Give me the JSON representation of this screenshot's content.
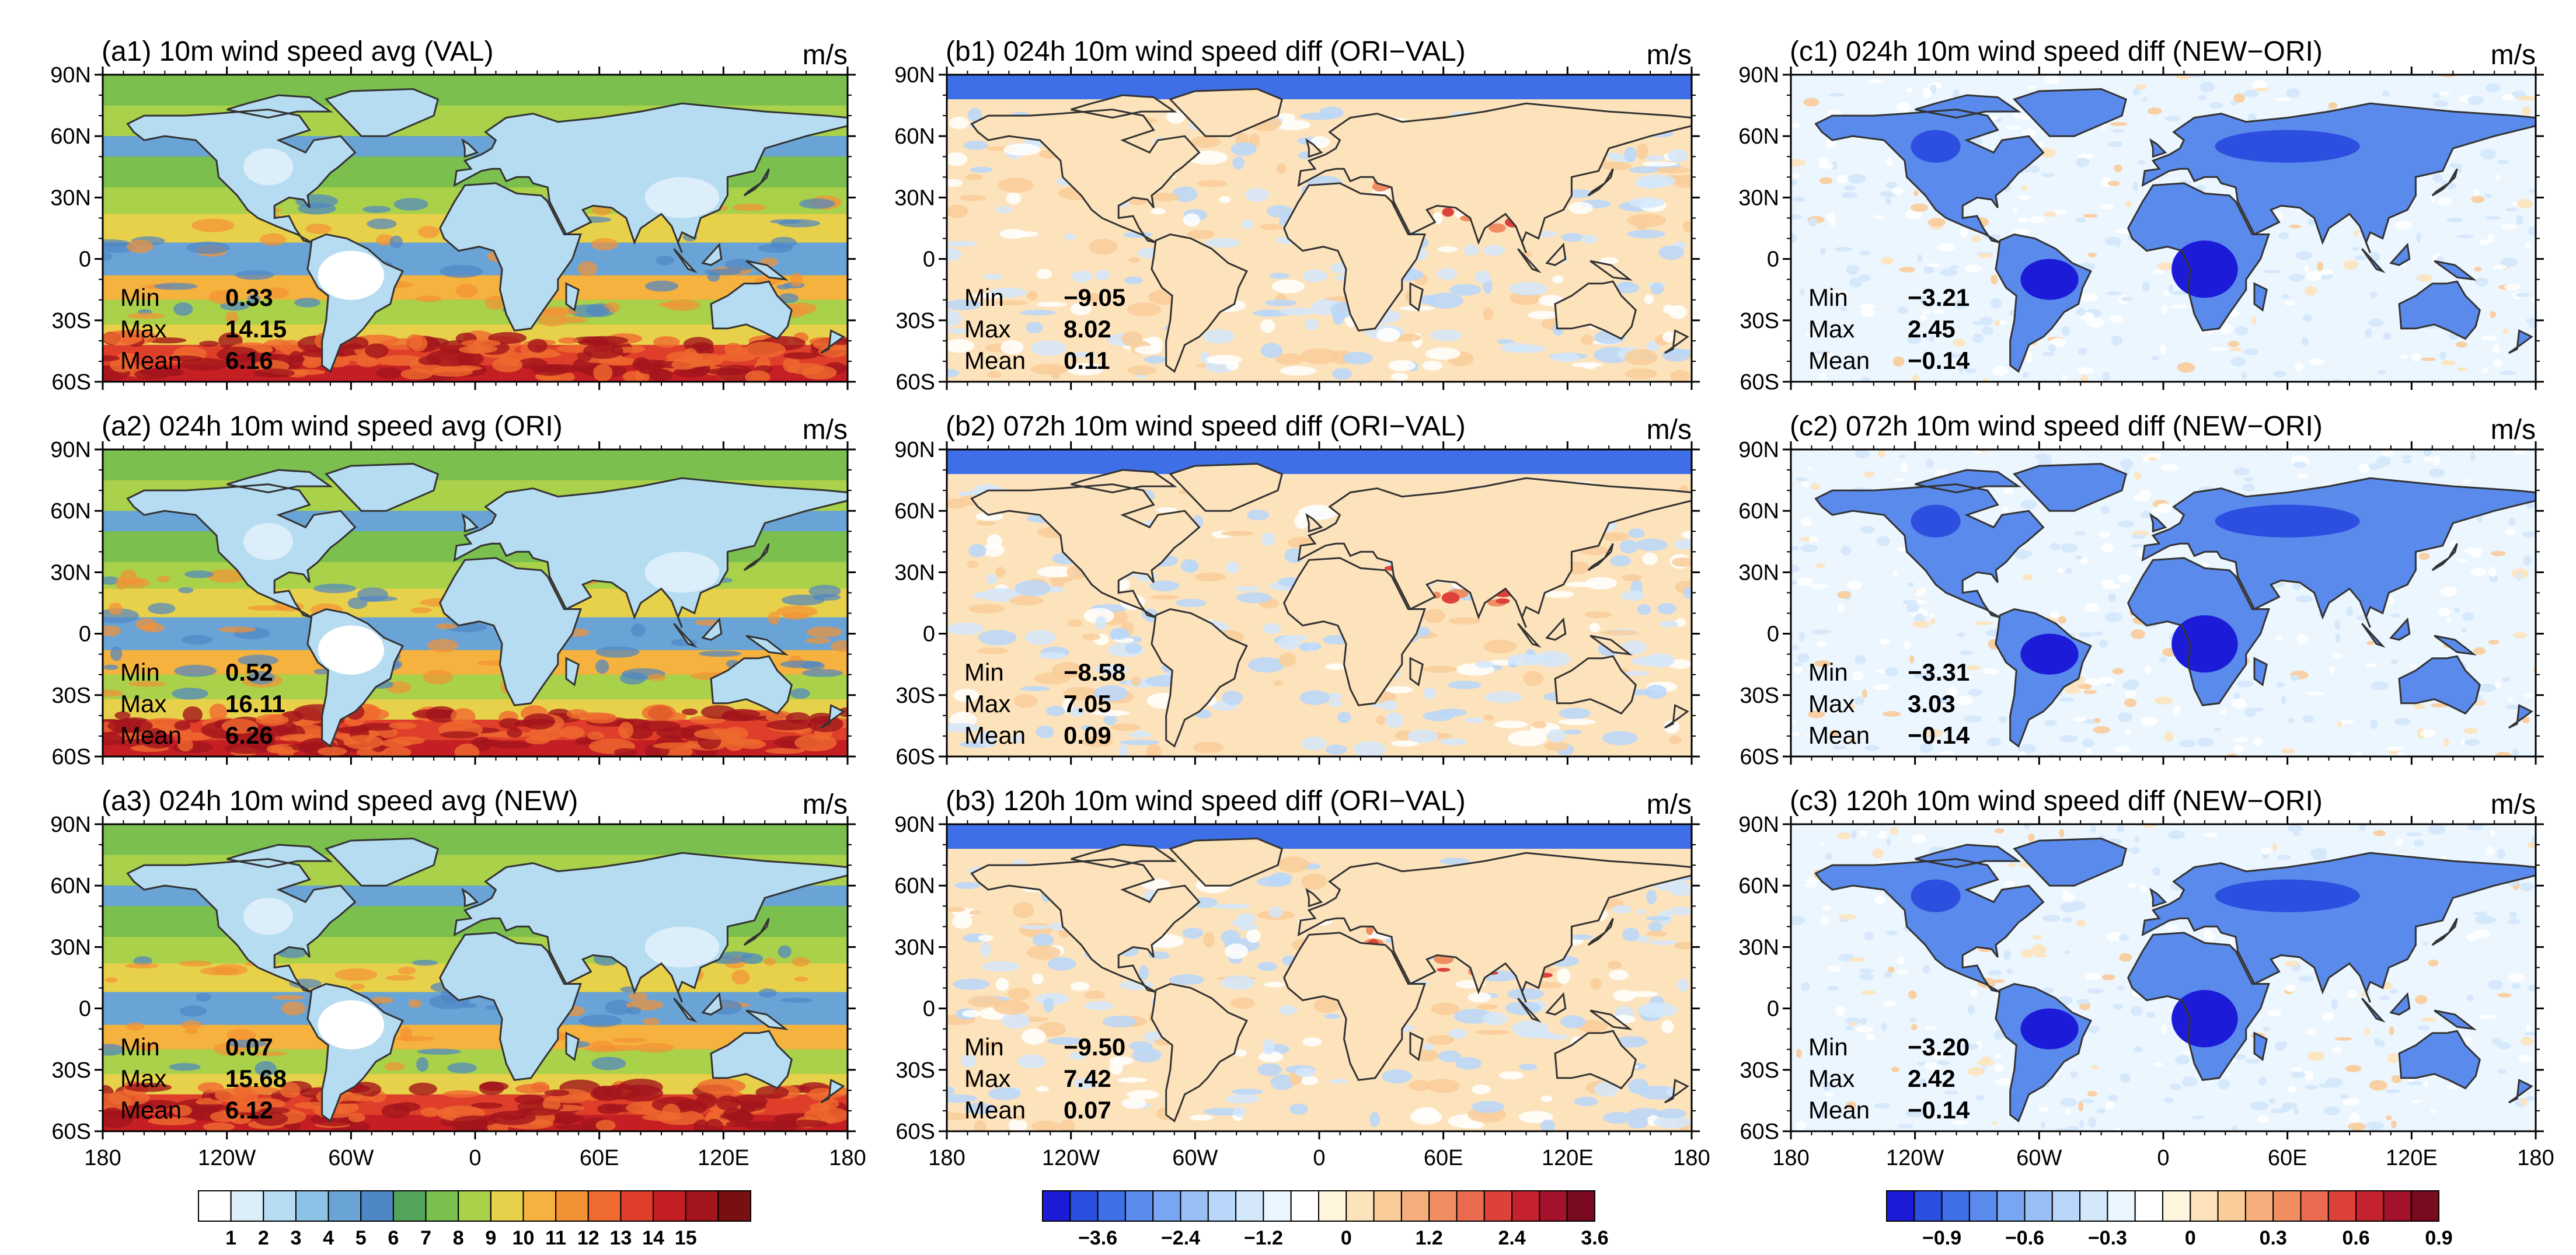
{
  "figure": {
    "lat_ticks": [
      "90N",
      "60N",
      "30N",
      "0",
      "30S",
      "60S"
    ],
    "lon_ticks": [
      "180",
      "120W",
      "60W",
      "0",
      "60E",
      "120E",
      "180"
    ],
    "unit": "m/s",
    "stat_labels": {
      "min": "Min",
      "max": "Max",
      "mean": "Mean"
    }
  },
  "colorbars": [
    {
      "name": "speed-colorbar",
      "colors": [
        "#ffffff",
        "#dceefa",
        "#b6dcf2",
        "#8cc2e6",
        "#6aa4d6",
        "#4f86c4",
        "#52a55a",
        "#7bbf4e",
        "#a9d14a",
        "#e8d14a",
        "#f5b23e",
        "#f39135",
        "#ef6a2e",
        "#df3f2a",
        "#c51f24",
        "#a3141c",
        "#7a0f12"
      ],
      "labels": [
        "1",
        "2",
        "3",
        "4",
        "5",
        "6",
        "7",
        "8",
        "9",
        "10",
        "11",
        "12",
        "13",
        "14",
        "15"
      ]
    },
    {
      "name": "diff-orival-colorbar",
      "colors": [
        "#1c1cd8",
        "#2d4fe0",
        "#3f6fe6",
        "#5a8aec",
        "#78a6f2",
        "#98c0f6",
        "#b8d7fa",
        "#d4e8fc",
        "#ecf6fe",
        "#ffffff",
        "#fff4dc",
        "#fde3bc",
        "#f9cc9a",
        "#f5ae7c",
        "#f08e62",
        "#e96a4e",
        "#dc4239",
        "#c52230",
        "#a3122a",
        "#7a0a20"
      ],
      "labels": [
        "−3.6",
        "−2.4",
        "−1.2",
        "0",
        "1.2",
        "2.4",
        "3.6"
      ]
    },
    {
      "name": "diff-newori-colorbar",
      "colors": [
        "#1c1cd8",
        "#2d4fe0",
        "#3f6fe6",
        "#5a8aec",
        "#78a6f2",
        "#98c0f6",
        "#b8d7fa",
        "#d4e8fc",
        "#ecf6fe",
        "#ffffff",
        "#fff4dc",
        "#fde3bc",
        "#f9cc9a",
        "#f5ae7c",
        "#f08e62",
        "#e96a4e",
        "#dc4239",
        "#c52230",
        "#a3122a",
        "#7a0a20"
      ],
      "labels": [
        "−0.9",
        "−0.6",
        "−0.3",
        "0",
        "0.3",
        "0.6",
        "0.9"
      ]
    }
  ],
  "chart_data": [
    {
      "type": "heatmap",
      "panel": "a1",
      "title": "(a1) 10m wind speed avg (VAL)",
      "unit": "m/s",
      "min": "0.33",
      "max": "14.15",
      "mean": "6.16"
    },
    {
      "type": "heatmap",
      "panel": "b1",
      "title": "(b1) 024h 10m wind speed diff (ORI−VAL)",
      "unit": "m/s",
      "min": "−9.05",
      "max": "8.02",
      "mean": "0.11"
    },
    {
      "type": "heatmap",
      "panel": "c1",
      "title": "(c1) 024h 10m wind speed diff (NEW−ORI)",
      "unit": "m/s",
      "min": "−3.21",
      "max": "2.45",
      "mean": "−0.14"
    },
    {
      "type": "heatmap",
      "panel": "a2",
      "title": "(a2) 024h 10m wind speed avg (ORI)",
      "unit": "m/s",
      "min": "0.52",
      "max": "16.11",
      "mean": "6.26"
    },
    {
      "type": "heatmap",
      "panel": "b2",
      "title": "(b2) 072h 10m wind speed diff (ORI−VAL)",
      "unit": "m/s",
      "min": "−8.58",
      "max": "7.05",
      "mean": "0.09"
    },
    {
      "type": "heatmap",
      "panel": "c2",
      "title": "(c2) 072h 10m wind speed diff (NEW−ORI)",
      "unit": "m/s",
      "min": "−3.31",
      "max": "3.03",
      "mean": "−0.14"
    },
    {
      "type": "heatmap",
      "panel": "a3",
      "title": "(a3) 024h 10m wind speed avg (NEW)",
      "unit": "m/s",
      "min": "0.07",
      "max": "15.68",
      "mean": "6.12"
    },
    {
      "type": "heatmap",
      "panel": "b3",
      "title": "(b3) 120h 10m wind speed diff (ORI−VAL)",
      "unit": "m/s",
      "min": "−9.50",
      "max": "7.42",
      "mean": "0.07"
    },
    {
      "type": "heatmap",
      "panel": "c3",
      "title": "(c3) 120h 10m wind speed diff (NEW−ORI)",
      "unit": "m/s",
      "min": "−3.20",
      "max": "2.42",
      "mean": "−0.14"
    }
  ]
}
